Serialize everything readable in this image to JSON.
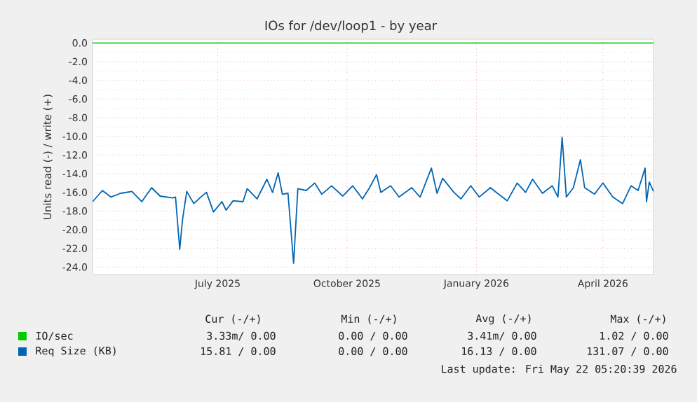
{
  "chart_data": {
    "type": "line",
    "title": "IOs for /dev/loop1 - by year",
    "ylabel": "Units read (-) / write (+)",
    "xlim": [
      "2025-04-18",
      "2026-05-22"
    ],
    "xticks": [
      {
        "value": "2025-07-16",
        "label": "July 2025"
      },
      {
        "value": "2025-10-16",
        "label": "October 2025"
      },
      {
        "value": "2026-01-16",
        "label": "January 2026"
      },
      {
        "value": "2026-04-16",
        "label": "April 2026"
      }
    ],
    "ylim": [
      -24.8,
      0.4
    ],
    "yticks": [
      {
        "value": 0,
        "label": "0.0"
      },
      {
        "value": -2,
        "label": "-2.0"
      },
      {
        "value": -4,
        "label": "-4.0"
      },
      {
        "value": -6,
        "label": "-6.0"
      },
      {
        "value": -8,
        "label": "-8.0"
      },
      {
        "value": -10,
        "label": "-10.0"
      },
      {
        "value": -12,
        "label": "-12.0"
      },
      {
        "value": -14,
        "label": "-14.0"
      },
      {
        "value": -16,
        "label": "-16.0"
      },
      {
        "value": -18,
        "label": "-18.0"
      },
      {
        "value": -20,
        "label": "-20.0"
      },
      {
        "value": -22,
        "label": "-22.0"
      },
      {
        "value": -24,
        "label": "-24.0"
      }
    ],
    "grid": true,
    "legend": "bottom",
    "marker": "none",
    "line_style": "solid",
    "series": [
      {
        "name": "IO/sec",
        "color": "#00cc00",
        "x": [
          "2025-04-18",
          "2026-05-22"
        ],
        "values": [
          0,
          0
        ]
      },
      {
        "name": "Req Size (KB)",
        "color": "#0066b3",
        "x": [
          "2025-04-18",
          "2025-04-25",
          "2025-05-01",
          "2025-05-08",
          "2025-05-16",
          "2025-05-23",
          "2025-05-30",
          "2025-06-05",
          "2025-06-14",
          "2025-06-16",
          "2025-06-19",
          "2025-06-21",
          "2025-06-24",
          "2025-06-29",
          "2025-07-04",
          "2025-07-08",
          "2025-07-13",
          "2025-07-19",
          "2025-07-22",
          "2025-07-27",
          "2025-08-03",
          "2025-08-06",
          "2025-08-13",
          "2025-08-20",
          "2025-08-24",
          "2025-08-28",
          "2025-08-31",
          "2025-09-04",
          "2025-09-08",
          "2025-09-11",
          "2025-09-17",
          "2025-09-23",
          "2025-09-28",
          "2025-10-05",
          "2025-10-13",
          "2025-10-20",
          "2025-10-27",
          "2025-11-01",
          "2025-11-06",
          "2025-11-09",
          "2025-11-16",
          "2025-11-22",
          "2025-12-01",
          "2025-12-07",
          "2025-12-15",
          "2025-12-19",
          "2025-12-23",
          "2025-12-31",
          "2026-01-05",
          "2026-01-12",
          "2026-01-18",
          "2026-01-26",
          "2026-01-31",
          "2026-02-07",
          "2026-02-14",
          "2026-02-20",
          "2026-02-25",
          "2026-03-04",
          "2026-03-11",
          "2026-03-15",
          "2026-03-18",
          "2026-03-21",
          "2026-03-26",
          "2026-03-31",
          "2026-04-03",
          "2026-04-10",
          "2026-04-16",
          "2026-04-23",
          "2026-04-30",
          "2026-05-06",
          "2026-05-11",
          "2026-05-16",
          "2026-05-17",
          "2026-05-19",
          "2026-05-22"
        ],
        "values": [
          -17.0,
          -15.8,
          -16.5,
          -16.1,
          -15.9,
          -17.0,
          -15.5,
          -16.4,
          -16.6,
          -16.5,
          -22.1,
          -18.9,
          -15.9,
          -17.2,
          -16.5,
          -16.0,
          -18.1,
          -17.0,
          -17.9,
          -16.9,
          -17.0,
          -15.6,
          -16.7,
          -14.6,
          -16.0,
          -13.9,
          -16.2,
          -16.1,
          -23.6,
          -15.6,
          -15.8,
          -15.0,
          -16.2,
          -15.3,
          -16.4,
          -15.3,
          -16.7,
          -15.5,
          -14.1,
          -16.0,
          -15.3,
          -16.5,
          -15.5,
          -16.5,
          -13.4,
          -16.1,
          -14.5,
          -16.0,
          -16.7,
          -15.3,
          -16.5,
          -15.5,
          -16.1,
          -16.9,
          -15.0,
          -16.0,
          -14.6,
          -16.1,
          -15.3,
          -16.5,
          -10.1,
          -16.5,
          -15.5,
          -12.5,
          -15.5,
          -16.2,
          -15.0,
          -16.5,
          -17.2,
          -15.3,
          -15.8,
          -13.4,
          -17.0,
          -14.9,
          -15.9
        ]
      }
    ],
    "annotations": [
      "Cur (-/+)",
      "Min (-/+)",
      "Avg (-/+)",
      "Max (-/+)",
      "3.33m/ 0.00",
      "0.00 / 0.00",
      "3.41m/ 0.00",
      "1.02 / 0.00",
      "15.81 / 0.00",
      "0.00 / 0.00",
      "16.13 / 0.00",
      "131.07 / 0.00",
      "Last update: Fri May 22 05:20:39 2026"
    ]
  }
}
